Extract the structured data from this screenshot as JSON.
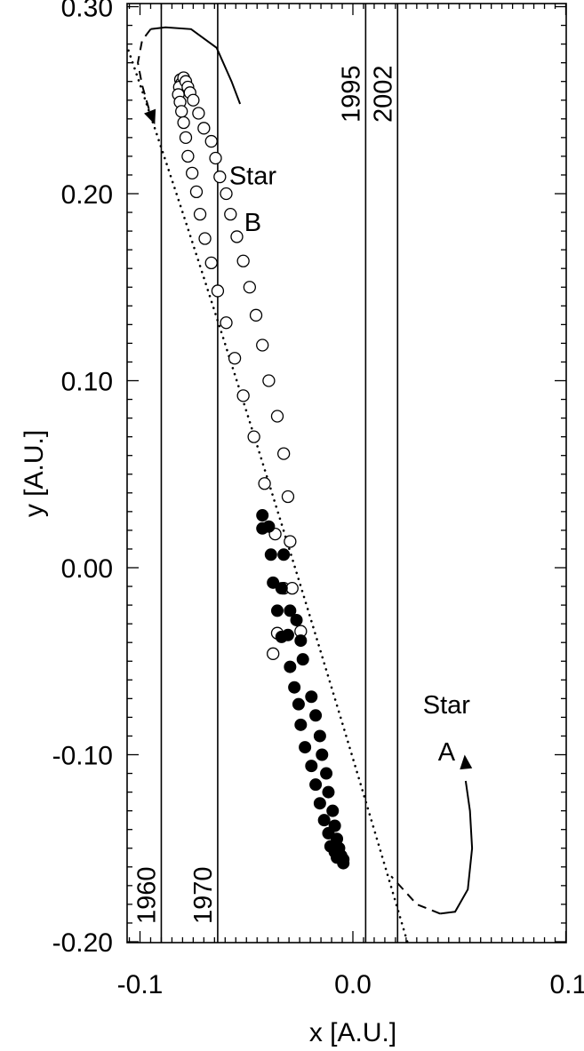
{
  "chart_data": {
    "type": "scatter",
    "xlabel": "x [A.U.]",
    "ylabel": "y [A.U.]",
    "xlim": [
      -0.12,
      0.12
    ],
    "ylim": [
      -0.2,
      0.3
    ],
    "xticks": [
      -0.1,
      0.0,
      0.1
    ],
    "xtick_labels": [
      "-0.1",
      "0.0",
      "0.1"
    ],
    "yticks": [
      -0.2,
      -0.1,
      0.0,
      0.1,
      0.2,
      0.3
    ],
    "ytick_labels": [
      "-0.20",
      "-0.10",
      "0.00",
      "0.10",
      "0.20",
      "0.30"
    ],
    "grid": false,
    "series": [
      {
        "name": "Star B",
        "marker": "open-circle",
        "points": [
          [
            -0.081,
            0.261
          ],
          [
            -0.0805,
            0.259
          ],
          [
            -0.0815,
            0.257
          ],
          [
            -0.0795,
            0.262
          ],
          [
            -0.0785,
            0.26
          ],
          [
            -0.082,
            0.253
          ],
          [
            -0.0775,
            0.257
          ],
          [
            -0.0765,
            0.254
          ],
          [
            -0.0812,
            0.249
          ],
          [
            -0.075,
            0.25
          ],
          [
            -0.0805,
            0.244
          ],
          [
            -0.0725,
            0.243
          ],
          [
            -0.0795,
            0.238
          ],
          [
            -0.07,
            0.235
          ],
          [
            -0.0785,
            0.23
          ],
          [
            -0.0665,
            0.228
          ],
          [
            -0.0775,
            0.22
          ],
          [
            -0.0645,
            0.219
          ],
          [
            -0.0755,
            0.211
          ],
          [
            -0.0625,
            0.209
          ],
          [
            -0.0735,
            0.201
          ],
          [
            -0.0595,
            0.2
          ],
          [
            -0.0718,
            0.189
          ],
          [
            -0.0575,
            0.189
          ],
          [
            -0.0695,
            0.176
          ],
          [
            -0.0545,
            0.177
          ],
          [
            -0.0665,
            0.163
          ],
          [
            -0.0515,
            0.164
          ],
          [
            -0.0635,
            0.148
          ],
          [
            -0.0485,
            0.15
          ],
          [
            -0.0595,
            0.131
          ],
          [
            -0.0455,
            0.135
          ],
          [
            -0.0555,
            0.112
          ],
          [
            -0.0425,
            0.119
          ],
          [
            -0.0515,
            0.092
          ],
          [
            -0.0395,
            0.1
          ],
          [
            -0.0465,
            0.07
          ],
          [
            -0.0355,
            0.081
          ],
          [
            -0.0415,
            0.045
          ],
          [
            -0.0325,
            0.061
          ],
          [
            -0.0365,
            0.018
          ],
          [
            -0.0305,
            0.038
          ],
          [
            -0.0295,
            0.014
          ],
          [
            -0.0325,
            -0.011
          ],
          [
            -0.0285,
            -0.011
          ],
          [
            -0.0355,
            -0.035
          ],
          [
            -0.0245,
            -0.034
          ],
          [
            -0.0375,
            -0.046
          ]
        ]
      },
      {
        "name": "Star A",
        "marker": "filled-circle",
        "points": [
          [
            -0.0425,
            0.028
          ],
          [
            -0.0395,
            0.022
          ],
          [
            -0.0425,
            0.021
          ],
          [
            -0.0385,
            0.007
          ],
          [
            -0.0325,
            0.007
          ],
          [
            -0.0375,
            -0.008
          ],
          [
            -0.0335,
            -0.011
          ],
          [
            -0.0355,
            -0.023
          ],
          [
            -0.0295,
            -0.023
          ],
          [
            -0.0335,
            -0.037
          ],
          [
            -0.0265,
            -0.028
          ],
          [
            -0.0305,
            -0.036
          ],
          [
            -0.0245,
            -0.039
          ],
          [
            -0.0295,
            -0.053
          ],
          [
            -0.0235,
            -0.049
          ],
          [
            -0.0275,
            -0.064
          ],
          [
            -0.0195,
            -0.069
          ],
          [
            -0.0255,
            -0.073
          ],
          [
            -0.0175,
            -0.079
          ],
          [
            -0.0245,
            -0.084
          ],
          [
            -0.0155,
            -0.09
          ],
          [
            -0.0225,
            -0.096
          ],
          [
            -0.0145,
            -0.1
          ],
          [
            -0.0195,
            -0.106
          ],
          [
            -0.0125,
            -0.11
          ],
          [
            -0.0175,
            -0.116
          ],
          [
            -0.0115,
            -0.12
          ],
          [
            -0.0155,
            -0.126
          ],
          [
            -0.0095,
            -0.13
          ],
          [
            -0.0135,
            -0.135
          ],
          [
            -0.0085,
            -0.138
          ],
          [
            -0.0115,
            -0.142
          ],
          [
            -0.0075,
            -0.145
          ],
          [
            -0.0105,
            -0.149
          ],
          [
            -0.0065,
            -0.15
          ],
          [
            -0.0085,
            -0.152
          ],
          [
            -0.0055,
            -0.154
          ],
          [
            -0.0075,
            -0.155
          ],
          [
            -0.0045,
            -0.156
          ],
          [
            -0.0045,
            -0.158
          ]
        ]
      }
    ],
    "curve": {
      "style": "dotted",
      "points": [
        [
          -0.118,
          0.318
        ],
        [
          -0.049,
          0.08
        ],
        [
          0.032,
          -0.225
        ]
      ]
    },
    "year_lines": [
      {
        "x": -0.09,
        "label": "1960",
        "label_position": "bottom"
      },
      {
        "x": -0.0635,
        "label": "1970",
        "label_position": "bottom"
      },
      {
        "x": 0.006,
        "label": "1995",
        "label_position": "top"
      },
      {
        "x": 0.021,
        "label": "2002",
        "label_position": "top"
      }
    ],
    "annotations": [
      {
        "line1": "Star",
        "line2": "B",
        "x": -0.047,
        "y1": 0.205,
        "y2": 0.18
      },
      {
        "line1": "Star",
        "line2": "A",
        "x": 0.044,
        "y1": -0.078,
        "y2": -0.103
      }
    ],
    "orbit_arrows": [
      {
        "near": "Star B",
        "solid": [
          [
            -0.053,
            0.248
          ],
          [
            -0.057,
            0.26
          ],
          [
            -0.064,
            0.278
          ],
          [
            -0.076,
            0.288
          ],
          [
            -0.088,
            0.289
          ],
          [
            -0.095,
            0.288
          ]
        ],
        "dashed": [
          [
            -0.095,
            0.288
          ],
          [
            -0.099,
            0.282
          ],
          [
            -0.101,
            0.27
          ],
          [
            -0.099,
            0.258
          ],
          [
            -0.096,
            0.246
          ],
          [
            -0.093,
            0.237
          ]
        ],
        "arrow_at": "dashed-end"
      },
      {
        "near": "Star A",
        "solid": [
          [
            0.053,
            -0.114
          ],
          [
            0.055,
            -0.13
          ],
          [
            0.056,
            -0.15
          ],
          [
            0.054,
            -0.172
          ],
          [
            0.048,
            -0.184
          ],
          [
            0.041,
            -0.185
          ]
        ],
        "dashed": [
          [
            0.041,
            -0.185
          ],
          [
            0.03,
            -0.18
          ],
          [
            0.018,
            -0.165
          ]
        ],
        "arrow_at": "solid-start"
      }
    ]
  }
}
